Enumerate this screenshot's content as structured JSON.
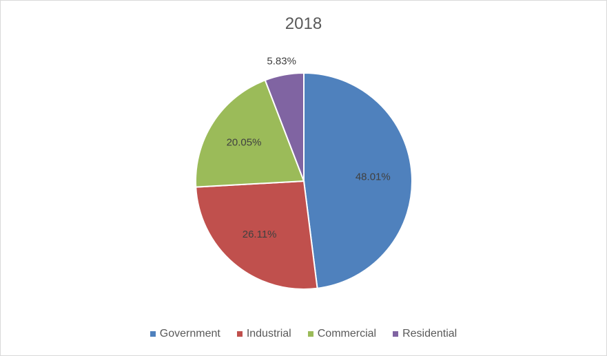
{
  "chart_data": {
    "type": "pie",
    "title": "2018",
    "categories": [
      "Government",
      "Industrial",
      "Commercial",
      "Residential"
    ],
    "values": [
      48.01,
      26.11,
      20.05,
      5.83
    ],
    "labels": [
      "48.01%",
      "26.11%",
      "20.05%",
      "5.83%"
    ],
    "colors": [
      "#4F81BD",
      "#C0504D",
      "#9BBB59",
      "#8064A2"
    ],
    "legend_position": "bottom",
    "start_angle": "top, clockwise"
  }
}
